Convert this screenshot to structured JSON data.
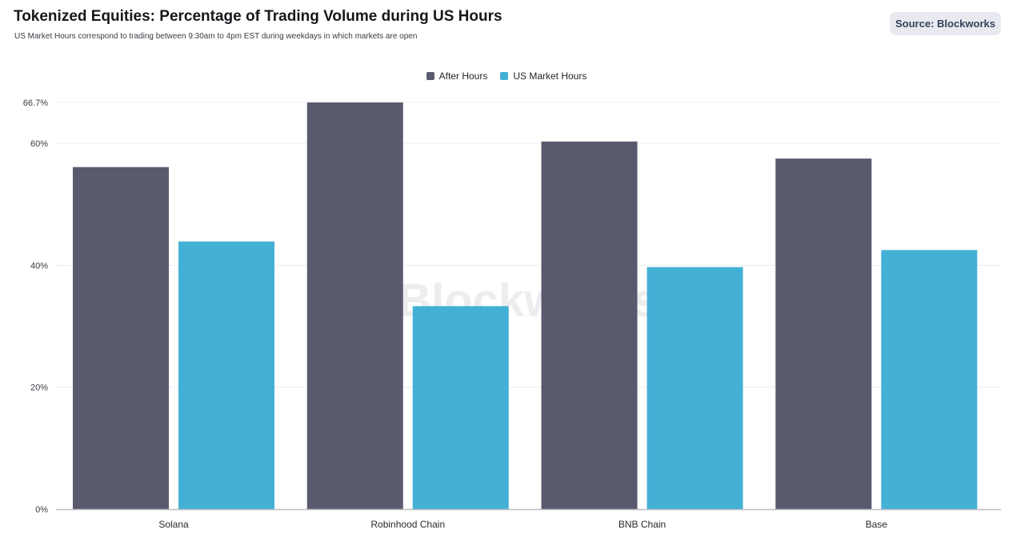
{
  "header": {
    "title": "Tokenized Equities: Percentage of Trading Volume during US Hours",
    "subtitle": "US Market Hours correspond to trading between 9:30am to 4pm EST during weekdays in which markets are open",
    "source_label": "Source: Blockworks"
  },
  "watermark": "Blockworks",
  "colors": {
    "after_hours": "#5a5a6e",
    "us_market_hours": "#45b0d6",
    "grid": "#ececf0",
    "axis": "#bdbdc4"
  },
  "chart_data": {
    "type": "bar",
    "title": "Tokenized Equities: Percentage of Trading Volume during US Hours",
    "subtitle": "US Market Hours correspond to trading between 9:30am to 4pm EST during weekdays in which markets are open",
    "categories": [
      "Solana",
      "Robinhood Chain",
      "BNB Chain",
      "Base"
    ],
    "series": [
      {
        "name": "After Hours",
        "values": [
          56.1,
          66.7,
          60.3,
          57.5
        ]
      },
      {
        "name": "US Market Hours",
        "values": [
          43.9,
          33.3,
          39.7,
          42.5
        ]
      }
    ],
    "yticks": [
      0,
      20,
      40,
      60,
      66.7
    ],
    "ytick_labels": [
      "0%",
      "20%",
      "40%",
      "60%",
      "66.7%"
    ],
    "ylim": [
      0,
      66.7
    ],
    "xlabel": "",
    "ylabel": "",
    "grid": true,
    "legend_position": "top-center"
  }
}
